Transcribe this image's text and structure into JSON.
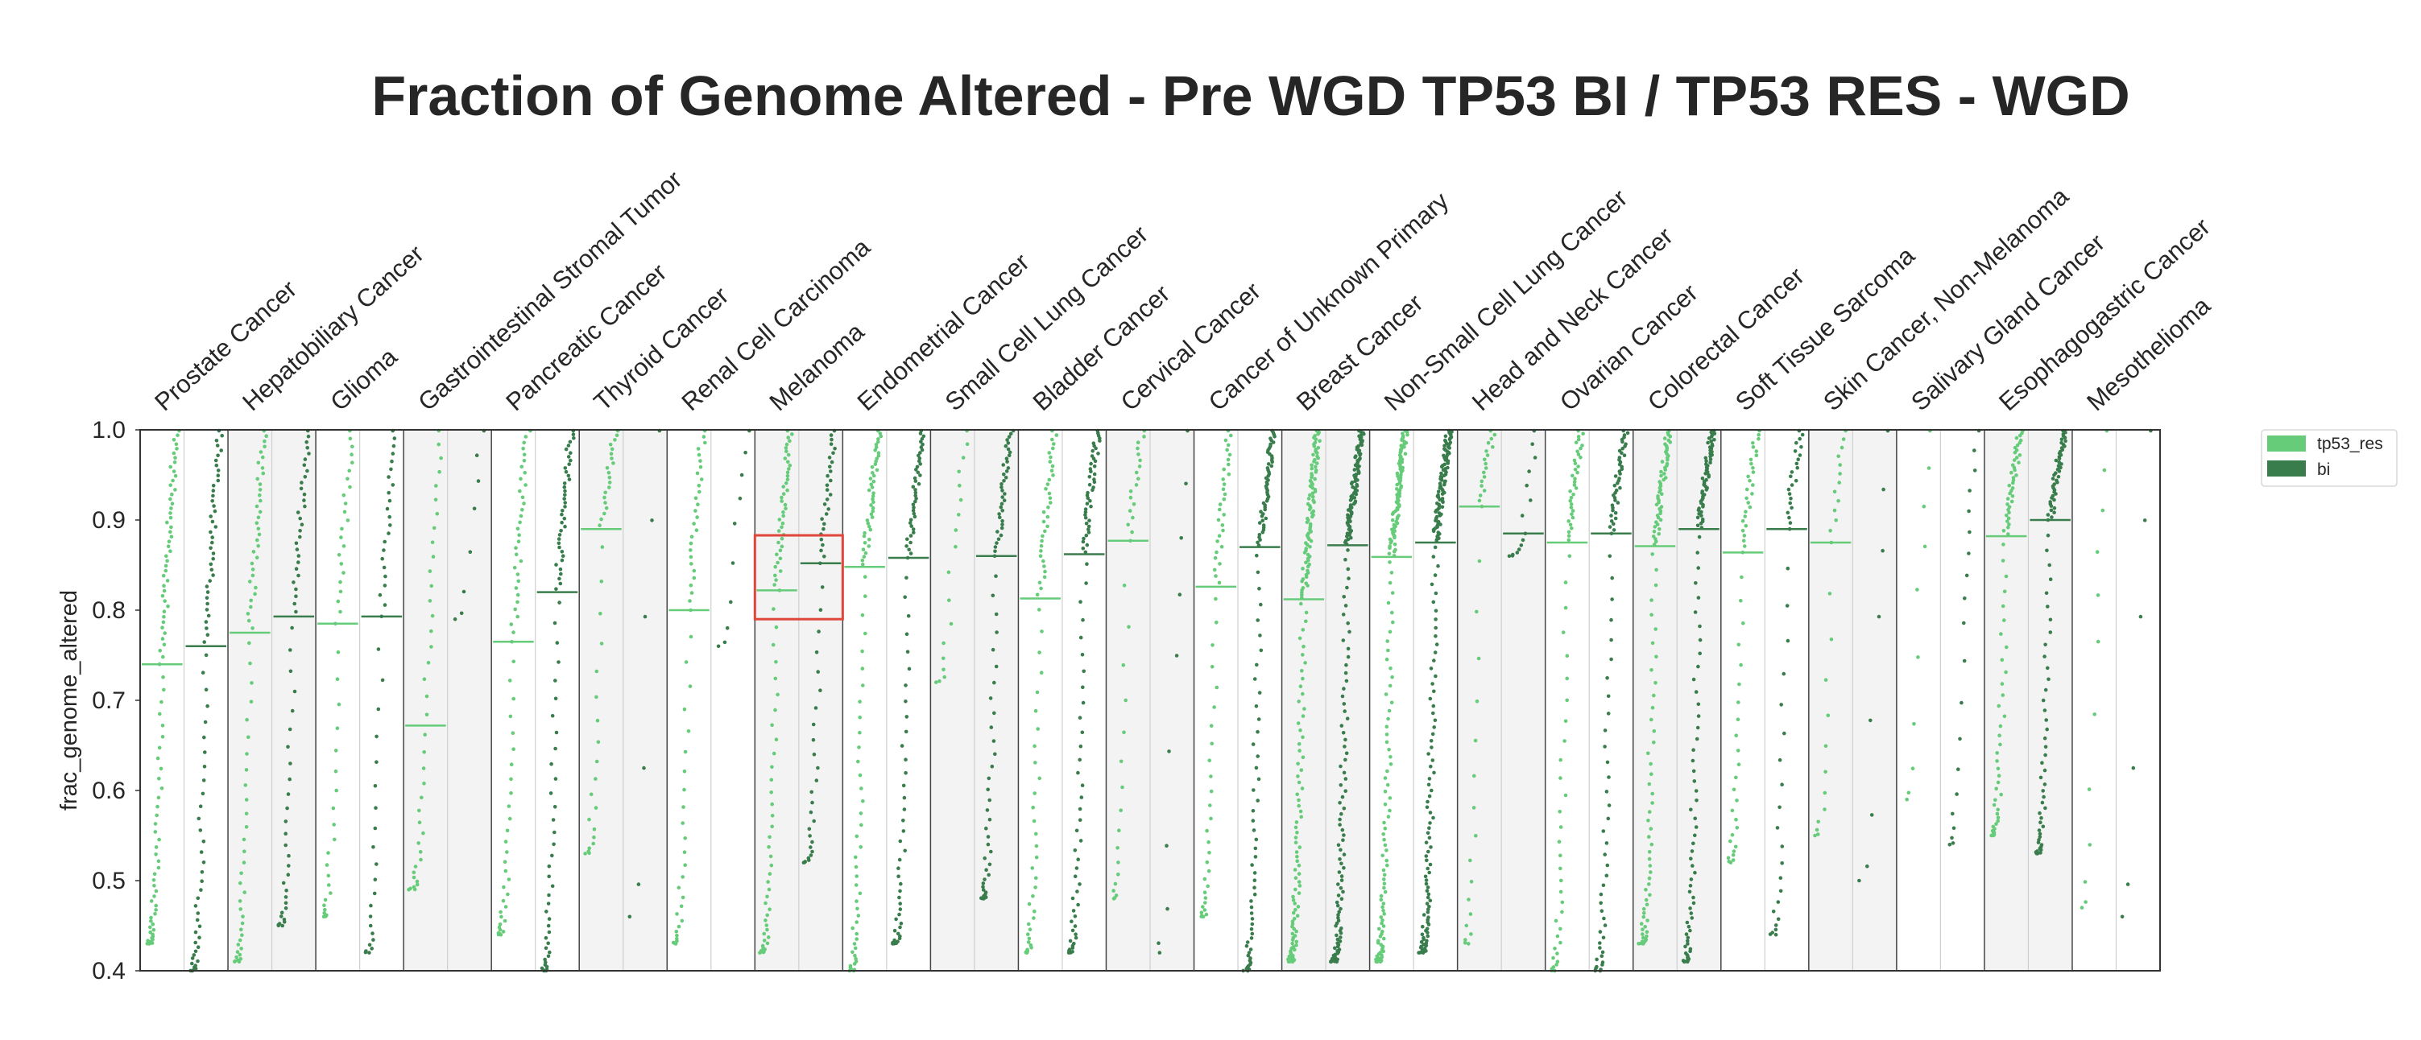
{
  "chart_data": {
    "type": "strip",
    "title": "Fraction of Genome Altered - Pre WGD TP53 BI / TP53 RES - WGD",
    "xlabel": "",
    "ylabel": "frac_genome_altered",
    "ylim": [
      0.4,
      1.0
    ],
    "yticks": [
      "0.4",
      "0.5",
      "0.6",
      "0.7",
      "0.8",
      "0.9",
      "1.0"
    ],
    "grid": false,
    "legend_position": "right",
    "series": [
      {
        "name": "tp53_res",
        "color": "#66cc7a"
      },
      {
        "name": "bi",
        "color": "#3a7d4c"
      }
    ],
    "categories": [
      "Prostate Cancer",
      "Hepatobiliary Cancer",
      "Glioma",
      "Gastrointestinal Stromal Tumor",
      "Pancreatic Cancer",
      "Thyroid Cancer",
      "Renal Cell Carcinoma",
      "Melanoma",
      "Endometrial Cancer",
      "Small Cell Lung Cancer",
      "Bladder Cancer",
      "Cervical Cancer",
      "Cancer of Unknown Primary",
      "Breast Cancer",
      "Non-Small Cell Lung Cancer",
      "Head and Neck Cancer",
      "Ovarian Cancer",
      "Colorectal Cancer",
      "Soft Tissue Sarcoma",
      "Skin Cancer, Non-Melanoma",
      "Salivary Gland Cancer",
      "Esophagogastric Cancer",
      "Mesothelioma"
    ],
    "medians": {
      "tp53_res": [
        0.74,
        0.775,
        0.785,
        0.672,
        0.765,
        0.89,
        0.8,
        0.822,
        0.848,
        null,
        0.813,
        0.877,
        0.826,
        0.812,
        0.859,
        0.915,
        0.875,
        0.871,
        0.864,
        0.875,
        null,
        0.882,
        null
      ],
      "bi": [
        0.76,
        0.793,
        0.793,
        null,
        0.82,
        null,
        null,
        0.852,
        0.858,
        0.86,
        0.862,
        null,
        0.87,
        0.872,
        0.875,
        0.885,
        0.885,
        0.89,
        0.89,
        null,
        null,
        0.9,
        null
      ]
    },
    "point_counts": {
      "tp53_res": [
        95,
        70,
        45,
        40,
        65,
        40,
        55,
        85,
        90,
        18,
        70,
        35,
        60,
        180,
        170,
        35,
        70,
        110,
        55,
        25,
        10,
        80,
        12
      ],
      "bi": [
        80,
        60,
        45,
        8,
        80,
        6,
        10,
        55,
        85,
        75,
        90,
        10,
        110,
        190,
        190,
        15,
        85,
        120,
        45,
        8,
        20,
        95,
        6
      ]
    },
    "min_values": {
      "tp53_res": [
        0.43,
        0.41,
        0.46,
        0.49,
        0.44,
        0.53,
        0.43,
        0.42,
        0.4,
        0.72,
        0.42,
        0.48,
        0.46,
        0.41,
        0.41,
        0.43,
        0.4,
        0.43,
        0.52,
        0.55,
        0.59,
        0.55,
        0.47
      ],
      "bi": [
        0.4,
        0.45,
        0.42,
        0.79,
        0.4,
        0.46,
        0.76,
        0.52,
        0.43,
        0.48,
        0.42,
        0.42,
        0.4,
        0.41,
        0.42,
        0.86,
        0.4,
        0.41,
        0.44,
        0.5,
        0.54,
        0.53,
        0.46
      ]
    },
    "highlight": {
      "category": "Melanoma",
      "y_range": [
        0.79,
        0.883
      ],
      "color": "#e0473b"
    }
  }
}
